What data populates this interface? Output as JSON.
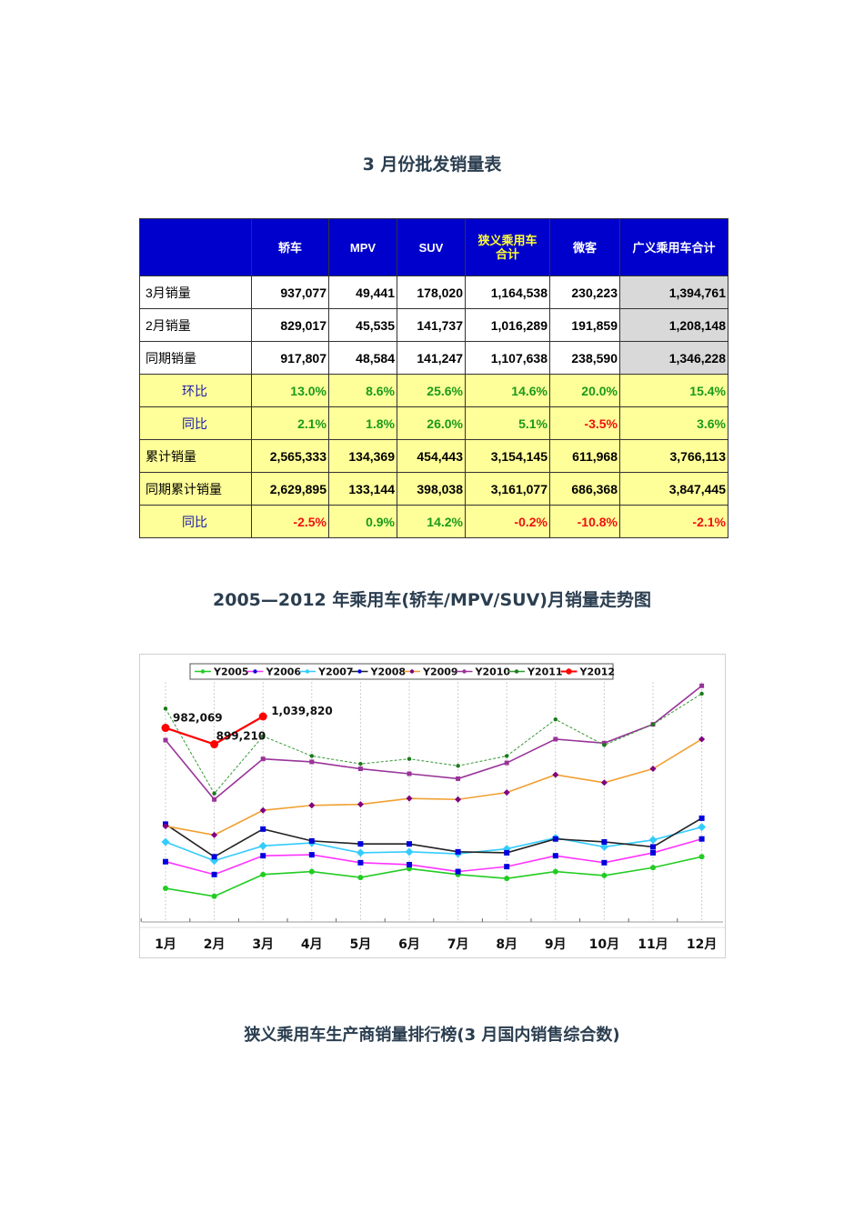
{
  "titles": {
    "table_title": "3 月份批发销量表",
    "chart_title": "2005—2012 年乘用车(轿车/MPV/SUV)月销量走势图",
    "ranking_title": "狭义乘用车生产商销量排行榜(3 月国内销售综合数)"
  },
  "table": {
    "headers": [
      "",
      "轿车",
      "MPV",
      "SUV",
      "狭义乘用车合计",
      "微客",
      "广义乘用车合计"
    ],
    "rows": [
      {
        "label": "3月销量",
        "values": [
          "937,077",
          "49,441",
          "178,020",
          "1,164,538",
          "230,223",
          "1,394,761"
        ]
      },
      {
        "label": "2月销量",
        "values": [
          "829,017",
          "45,535",
          "141,737",
          "1,016,289",
          "191,859",
          "1,208,148"
        ]
      },
      {
        "label": "同期销量",
        "values": [
          "917,807",
          "48,584",
          "141,247",
          "1,107,638",
          "238,590",
          "1,346,228"
        ]
      },
      {
        "label": "环比",
        "values": [
          "13.0%",
          "8.6%",
          "25.6%",
          "14.6%",
          "20.0%",
          "15.4%"
        ]
      },
      {
        "label": "同比",
        "values": [
          "2.1%",
          "1.8%",
          "26.0%",
          "5.1%",
          "-3.5%",
          "3.6%"
        ]
      },
      {
        "label": "累计销量",
        "values": [
          "2,565,333",
          "134,369",
          "454,443",
          "3,154,145",
          "611,968",
          "3,766,113"
        ]
      },
      {
        "label": "同期累计销量",
        "values": [
          "2,629,895",
          "133,144",
          "398,038",
          "3,161,077",
          "686,368",
          "3,847,445"
        ]
      },
      {
        "label": "同比",
        "values": [
          "-2.5%",
          "0.9%",
          "14.2%",
          "-0.2%",
          "-10.8%",
          "-2.1%"
        ]
      }
    ],
    "colors": {
      "header_bg": "#0000cc",
      "highlight_bg": "#ffff99",
      "total_bg": "#d9d9d9",
      "positive": "#1a9a1a",
      "negative": "#ee1111"
    }
  },
  "chart_data": {
    "type": "line",
    "title": "2005—2012 年乘用车(轿车/MPV/SUV)月销量走势图",
    "xlabel": "",
    "ylabel": "",
    "categories": [
      "1月",
      "2月",
      "3月",
      "4月",
      "5月",
      "6月",
      "7月",
      "8月",
      "9月",
      "10月",
      "11月",
      "12月"
    ],
    "legend_position": "top",
    "grid": "vertical dotted",
    "y_axis_labels_shown": false,
    "note": "Y axis unlabeled; values below are relative heights estimated from pixel positions (units ≈ vehicles, anchored on labeled Y2012 points).",
    "annotations": [
      {
        "series": "Y2012",
        "month": "1月",
        "text": "982,069"
      },
      {
        "series": "Y2012",
        "month": "2月",
        "text": "899,210"
      },
      {
        "series": "Y2012",
        "month": "3月",
        "text": "1,039,820"
      }
    ],
    "series": [
      {
        "name": "Y2005",
        "color": "#22cc22",
        "marker": "circle",
        "values": [
          170000,
          130000,
          240000,
          255000,
          225000,
          270000,
          240000,
          220000,
          255000,
          235000,
          275000,
          330000
        ]
      },
      {
        "name": "Y2006",
        "color": "#ff33ff",
        "marker": "square",
        "values": [
          305000,
          240000,
          335000,
          340000,
          300000,
          290000,
          255000,
          280000,
          335000,
          300000,
          350000,
          420000
        ]
      },
      {
        "name": "Y2007",
        "color": "#33ccff",
        "marker": "diamond",
        "values": [
          405000,
          310000,
          385000,
          400000,
          350000,
          355000,
          345000,
          370000,
          425000,
          380000,
          415000,
          480000
        ]
      },
      {
        "name": "Y2008",
        "color": "#222222",
        "marker": "square",
        "values": [
          495000,
          330000,
          470000,
          410000,
          395000,
          395000,
          355000,
          350000,
          420000,
          405000,
          380000,
          525000
        ]
      },
      {
        "name": "Y2009",
        "color": "#f0a030",
        "marker": "diamond",
        "values": [
          485000,
          440000,
          565000,
          590000,
          595000,
          625000,
          620000,
          655000,
          745000,
          705000,
          775000,
          925000
        ]
      },
      {
        "name": "Y2010",
        "color": "#993399",
        "marker": "dash",
        "values": [
          920000,
          620000,
          825000,
          810000,
          775000,
          750000,
          725000,
          805000,
          925000,
          905000,
          1000000,
          1195000
        ]
      },
      {
        "name": "Y2011",
        "color": "#339933",
        "marker": "dot",
        "values": [
          1080000,
          650000,
          940000,
          840000,
          800000,
          825000,
          790000,
          840000,
          1025000,
          895000,
          1000000,
          1155000
        ]
      },
      {
        "name": "Y2012",
        "color": "#ff0000",
        "marker": "circle",
        "values": [
          982069,
          899210,
          1039820,
          null,
          null,
          null,
          null,
          null,
          null,
          null,
          null,
          null
        ]
      }
    ]
  }
}
